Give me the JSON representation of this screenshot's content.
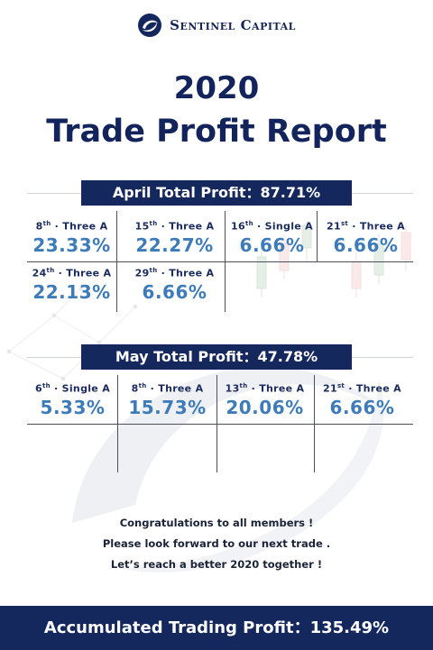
{
  "brand": {
    "name": "Sentinel Capital",
    "logo_icon": "sentinel-swirl-logo"
  },
  "title": {
    "year": "2020",
    "heading": "Trade Profit Report"
  },
  "april": {
    "banner": "April Total Profit：87.71%",
    "cells": [
      {
        "day": "8",
        "suffix": "th",
        "type": "Three A",
        "value": "23.33%"
      },
      {
        "day": "15",
        "suffix": "th",
        "type": "Three A",
        "value": "22.27%"
      },
      {
        "day": "16",
        "suffix": "th",
        "type": "Single A",
        "value": "6.66%"
      },
      {
        "day": "21",
        "suffix": "st",
        "type": "Three A",
        "value": "6.66%"
      },
      {
        "day": "24",
        "suffix": "th",
        "type": "Three A",
        "value": "22.13%"
      },
      {
        "day": "29",
        "suffix": "th",
        "type": "Three A",
        "value": "6.66%"
      }
    ]
  },
  "may": {
    "banner": "May Total Profit：47.78%",
    "cells": [
      {
        "day": "6",
        "suffix": "th",
        "type": "Single A",
        "value": "5.33%"
      },
      {
        "day": "8",
        "suffix": "th",
        "type": "Three A",
        "value": "15.73%"
      },
      {
        "day": "13",
        "suffix": "th",
        "type": "Three A",
        "value": "20.06%"
      },
      {
        "day": "21",
        "suffix": "st",
        "type": "Three A",
        "value": "6.66%"
      }
    ]
  },
  "message": {
    "line1": "Congratulations to all members !",
    "line2": "Please look forward to our next trade .",
    "line3": "Let’s reach a better 2020 together !"
  },
  "footer": {
    "text": "Accumulated Trading Profit：135.49%"
  },
  "colors": {
    "navy": "#14285e",
    "value_blue": "#3e7bb9"
  }
}
